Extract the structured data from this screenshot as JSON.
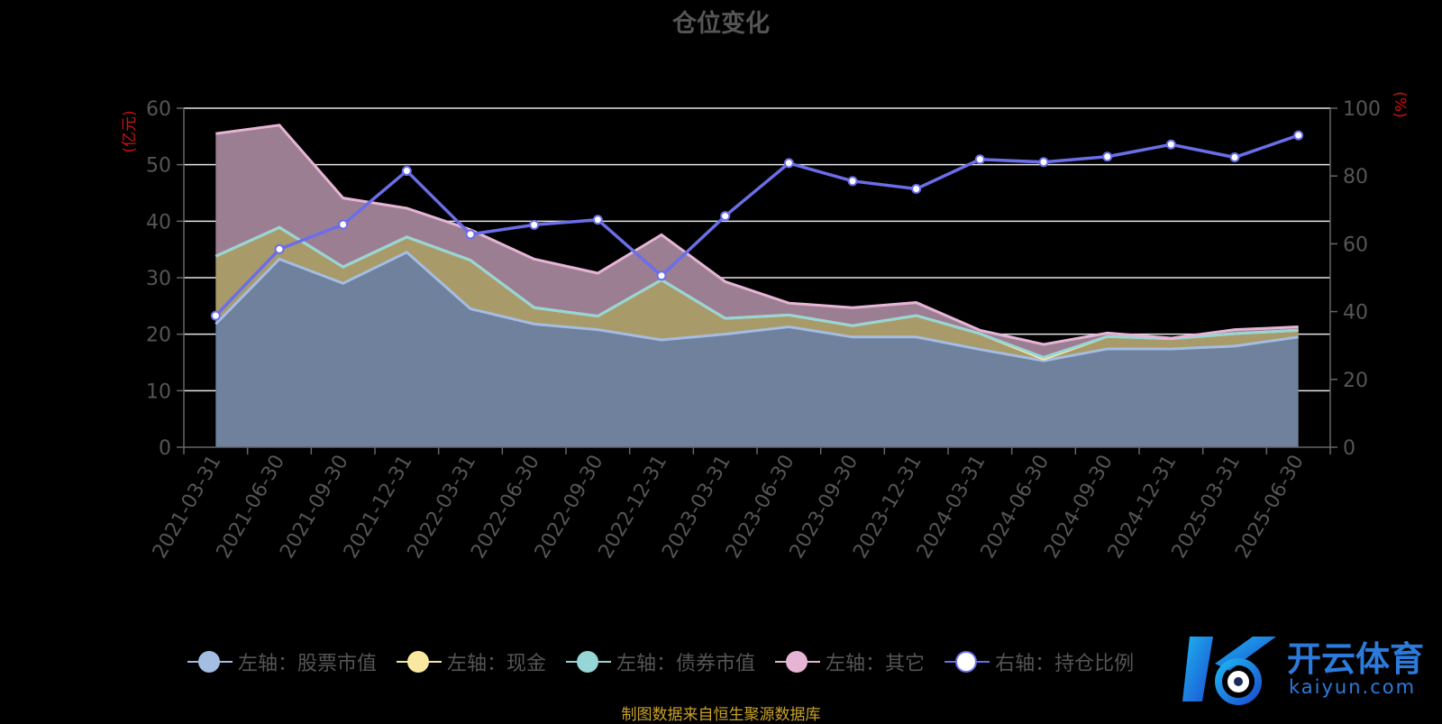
{
  "chart_data": {
    "type": "area",
    "title": "仓位变化",
    "left_axis": {
      "label": "(亿元)",
      "ylim": [
        0,
        60
      ],
      "ticks": [
        "0",
        "10",
        "20",
        "30",
        "40",
        "50",
        "60"
      ]
    },
    "right_axis": {
      "label": "(%)",
      "ylim": [
        0,
        100
      ],
      "ticks": [
        "0",
        "20",
        "40",
        "60",
        "80",
        "100"
      ]
    },
    "categories": [
      "2021-03-31",
      "2021-06-30",
      "2021-09-30",
      "2021-12-31",
      "2022-03-31",
      "2022-06-30",
      "2022-09-30",
      "2022-12-31",
      "2023-03-31",
      "2023-06-30",
      "2023-09-30",
      "2023-12-31",
      "2024-03-31",
      "2024-06-30",
      "2024-09-30",
      "2024-12-31",
      "2025-03-31",
      "2025-06-30"
    ],
    "stacked_series": [
      {
        "name": "左轴：股票市值",
        "color": "#a3bde3",
        "fill": "#6f819d",
        "values": [
          21.8,
          33.3,
          29.0,
          34.5,
          24.5,
          21.8,
          20.8,
          19.0,
          20.0,
          21.3,
          19.5,
          19.5,
          17.3,
          15.3,
          17.4,
          17.4,
          17.9,
          19.5
        ]
      },
      {
        "name": "左轴：现金",
        "color": "#fbe8a0",
        "fill": "#a99a6a",
        "values": [
          12.0,
          5.6,
          2.9,
          2.7,
          8.6,
          2.9,
          2.4,
          10.6,
          2.8,
          2.1,
          2.0,
          3.8,
          2.8,
          0.3,
          2.2,
          1.8,
          2.2,
          1.2
        ]
      },
      {
        "name": "左轴：债券市值",
        "color": "#96d6d6",
        "fill": "#6f9a9a",
        "values": [
          0,
          0,
          0,
          0,
          0,
          0,
          0,
          0,
          0,
          0,
          0,
          0,
          0,
          0.3,
          0,
          0,
          0,
          0
        ]
      },
      {
        "name": "左轴：其它",
        "color": "#e6b5d6",
        "fill": "#9b7e92",
        "values": [
          21.7,
          18.1,
          12.2,
          5.1,
          5.4,
          8.6,
          7.6,
          8.0,
          6.5,
          2.1,
          3.2,
          2.3,
          0.6,
          2.3,
          0.6,
          0.1,
          0.7,
          0.6
        ]
      }
    ],
    "line_series": {
      "name": "右轴：持仓比例",
      "color": "#6b6ee8",
      "values": [
        38.8,
        58.4,
        65.7,
        81.5,
        62.8,
        65.6,
        67.1,
        50.6,
        68.2,
        83.8,
        78.5,
        76.2,
        84.9,
        84.1,
        85.7,
        89.3,
        85.5,
        92.0
      ]
    },
    "grid": true,
    "legend_position": "bottom"
  },
  "footer": "制图数据来自恒生聚源数据库",
  "watermark": {
    "brand": "开云体育",
    "domain": "kaiyun.com"
  }
}
